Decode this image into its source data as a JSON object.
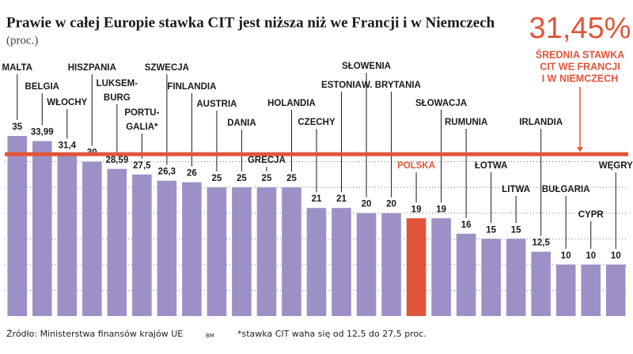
{
  "chart_data": {
    "type": "bar",
    "title": "Prawie w całej Europie stawka CIT jest niższa niż we Francji i w Niemczech",
    "subtitle": "(proc.)",
    "categories": [
      "MALTA",
      "BELGIA",
      "WŁOCHY",
      "HISZPANIA",
      "LUKSEM-\nBURG",
      "PORTU-\nGALIA*",
      "SZWECJA",
      "FINLANDIA",
      "AUSTRIA",
      "DANIA",
      "GRECJA",
      "HOLANDIA",
      "CZECHY",
      "ESTONIA",
      "SŁOWENIA",
      "W. BRYTANIA",
      "POLSKA",
      "SŁOWACJA",
      "RUMUNIA",
      "ŁOTWA",
      "LITWA",
      "IRLANDIA",
      "BUŁGARIA",
      "CYPR",
      "WĘGRY"
    ],
    "values": [
      35,
      33.99,
      31.4,
      30,
      28.59,
      27.5,
      26.3,
      26,
      25,
      25,
      25,
      25,
      21,
      21,
      20,
      20,
      19,
      19,
      16,
      15,
      15,
      12.5,
      10,
      10,
      10
    ],
    "value_labels": [
      "35",
      "33,99",
      "31,4",
      "30",
      "28,59",
      "27,5",
      "26,3",
      "26",
      "25",
      "25",
      "25",
      "25",
      "21",
      "21",
      "20",
      "20",
      "19",
      "19",
      "16",
      "15",
      "15",
      "12,5",
      "10",
      "10",
      "10"
    ],
    "colors": [
      "#9d90c6",
      "#9d90c6",
      "#9d90c6",
      "#9d90c6",
      "#9d90c6",
      "#9d90c6",
      "#9d90c6",
      "#9d90c6",
      "#9d90c6",
      "#9d90c6",
      "#9d90c6",
      "#9d90c6",
      "#9d90c6",
      "#9d90c6",
      "#9d90c6",
      "#9d90c6",
      "#e2553a",
      "#9d90c6",
      "#9d90c6",
      "#9d90c6",
      "#9d90c6",
      "#9d90c6",
      "#9d90c6",
      "#9d90c6",
      "#9d90c6"
    ],
    "ylim": [
      0,
      35
    ],
    "yticks": [
      5,
      10,
      15,
      20,
      25,
      30
    ],
    "grid": true,
    "tick_labels": false,
    "reference_line": {
      "value": 31.45,
      "label": "31,45%",
      "color": "#e2553a",
      "note": [
        "ŚREDNIA STAWKA",
        "CIT WE FRANCJI",
        "I W NIEMCZECH"
      ]
    },
    "source": "Źródło: Ministerstwa finansów krajów UE",
    "author": "BM",
    "footnote": "*stawka CIT waha się od 12,5 do 27,5 proc."
  }
}
